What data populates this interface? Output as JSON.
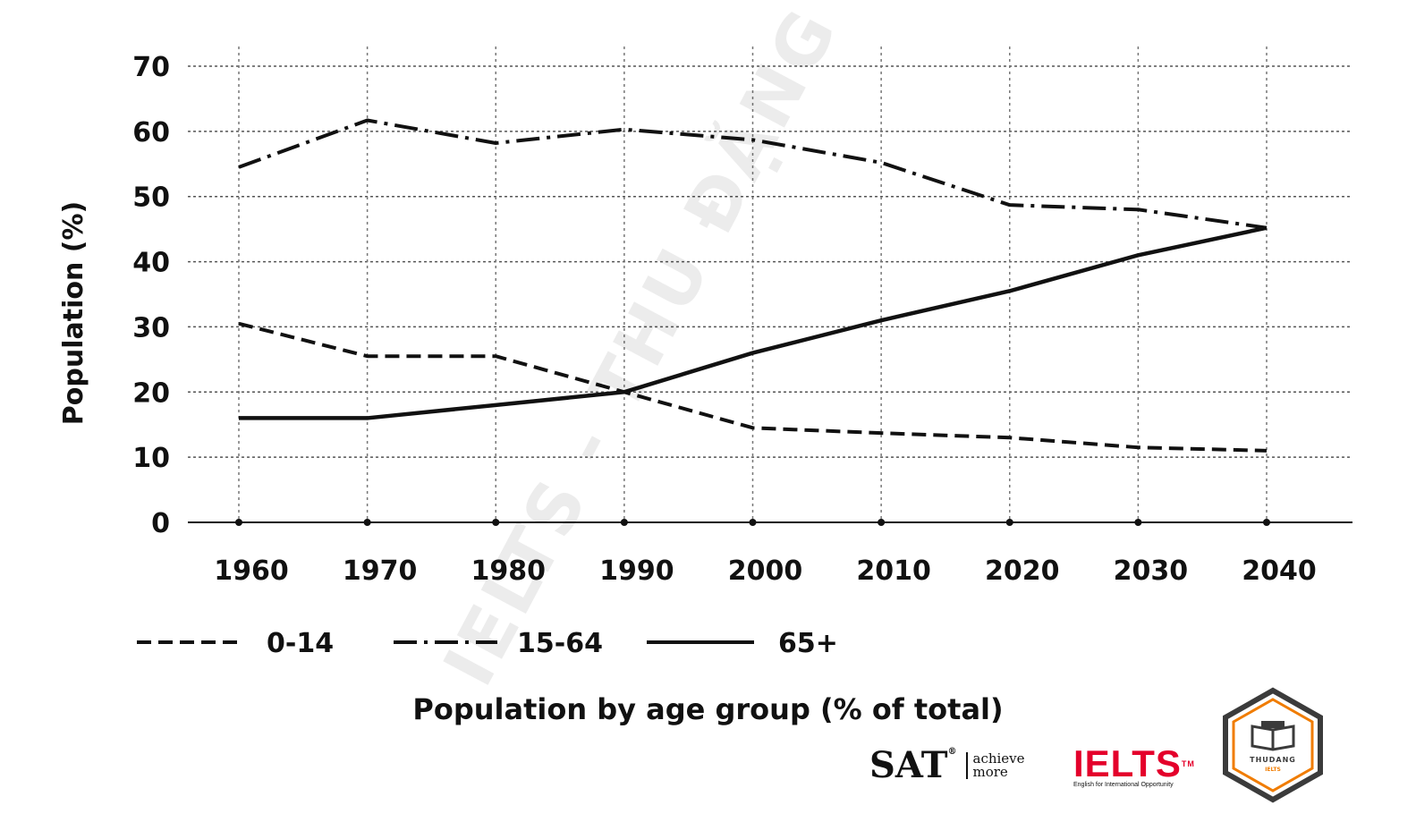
{
  "chart_data": {
    "type": "line",
    "title": "Population by age group (% of total)",
    "xlabel": "",
    "ylabel": "Population (%)",
    "ylim": [
      0,
      70
    ],
    "yticks": [
      0,
      10,
      20,
      30,
      40,
      50,
      60,
      70
    ],
    "grid": true,
    "categories": [
      "1960",
      "1970",
      "1980",
      "1990",
      "2000",
      "2010",
      "2020",
      "2030",
      "2040"
    ],
    "legend_position": "bottom",
    "series": [
      {
        "name": "0-14",
        "style": "dashed",
        "values": [
          30.5,
          25.5,
          25.5,
          20,
          14.5,
          13.7,
          13,
          11.5,
          11
        ]
      },
      {
        "name": "15-64",
        "style": "dash-dot",
        "values": [
          54.5,
          61.7,
          58.2,
          60.3,
          58.7,
          55.2,
          48.7,
          48,
          45.2
        ]
      },
      {
        "name": "65+",
        "style": "solid",
        "values": [
          16,
          16,
          18,
          20,
          26,
          31,
          35.5,
          41,
          45.2
        ]
      }
    ]
  },
  "watermark": "IELTS - THU ĐẶNG",
  "logos": {
    "sat": {
      "mark": "SAT",
      "registered": "®",
      "tagline_1": "achieve",
      "tagline_2": "more"
    },
    "ielts": {
      "mark": "IELTS",
      "trademark": "TM",
      "subtitle": "English for International Opportunity"
    },
    "badge": {
      "line1": "THUDANG",
      "line2": "IELTS"
    }
  },
  "colors": {
    "line": "#111111",
    "grid": "#555555",
    "ielts_red": "#e4002b",
    "badge_orange": "#f07c00",
    "badge_frame": "#3b3b3b"
  }
}
